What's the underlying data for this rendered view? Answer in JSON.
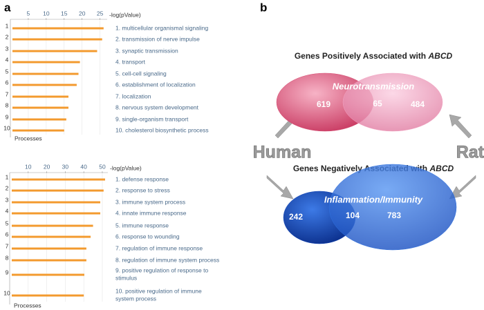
{
  "panels": [
    "a",
    "b"
  ],
  "chart_data": [
    {
      "type": "bar",
      "orientation": "horizontal",
      "ranks": [
        1,
        2,
        3,
        4,
        5,
        6,
        7,
        8,
        9,
        10
      ],
      "categories": [
        "1. multicellular organismal signaling",
        "2. transmission of nerve impulse",
        "3. synaptic transmission",
        "4. transport",
        "5. cell-cell signaling",
        "6. establishment of localization",
        "7. localization",
        "8. nervous system development",
        "9. single-organism transport",
        "10. cholesterol biosynthetic process"
      ],
      "values": [
        26,
        25.6,
        24.2,
        19.4,
        19,
        18.5,
        16.2,
        16.2,
        15.6,
        15
      ],
      "xlim": [
        0,
        27
      ],
      "xticks": [
        5,
        10,
        15,
        20,
        25
      ],
      "xlabel": "-log(pValue)",
      "ylabel": "Processes",
      "color": "#f39a2e",
      "grid": true
    },
    {
      "type": "bar",
      "orientation": "horizontal",
      "ranks": [
        1,
        2,
        3,
        4,
        5,
        6,
        7,
        8,
        9,
        10
      ],
      "categories": [
        "1. defense response",
        "2. response to stress",
        "3. immune system process",
        "4. innate immune response",
        "5. immune response",
        "6. response to wounding",
        "7. regulation of immune response",
        "8. regulation of immune system process",
        "9. positive regulation of response to stimulus",
        "10. positive regulation of immune system process"
      ],
      "values": [
        51.5,
        50.7,
        48.9,
        48.9,
        45,
        43.7,
        41.4,
        41.4,
        40.3,
        40
      ],
      "xlim": [
        0,
        53
      ],
      "xticks": [
        10,
        20,
        30,
        40,
        50
      ],
      "xlabel": "-log(pValue)",
      "ylabel": "Processes",
      "color": "#f39a2e",
      "grid": true
    },
    {
      "type": "venn",
      "sets": [
        "Human",
        "Rat"
      ],
      "groups": [
        {
          "title": "Genes Positively Associated with",
          "title_emphasis": "ABCD",
          "label": "Neurotransmission",
          "values": [
            619,
            65,
            484
          ],
          "colors": [
            "#d84c72",
            "#f4a6c4"
          ]
        },
        {
          "title": "Genes Negatively Associated with",
          "title_emphasis": "ABCD",
          "label": "Inflammation/Immunity",
          "values": [
            242,
            104,
            783
          ],
          "colors": [
            "#1346b8",
            "#2f72e0"
          ]
        }
      ]
    }
  ]
}
